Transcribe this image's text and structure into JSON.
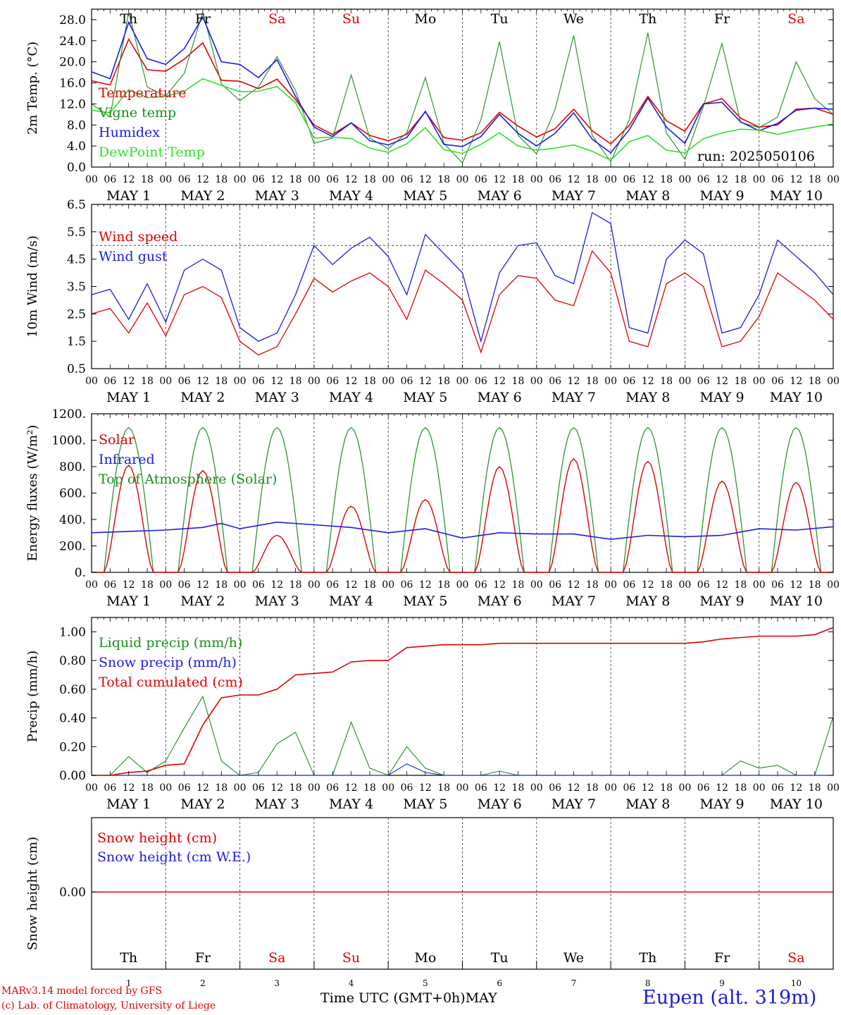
{
  "footer": {
    "credit_line1": "MARv3.14 model forced by GFS",
    "credit_line2": "(c) Lab. of Climatology, University of Liege",
    "x_axis_title": "Time UTC (GMT+0h)MAY",
    "station": "Eupen (alt. 319m)"
  },
  "colors": {
    "red": "#e00000",
    "green": "#1e8c1e",
    "blue": "#1c1ce0",
    "light_green": "#33dd33",
    "weekend_red": "#e00000",
    "grid": "#444444"
  },
  "chart_data": [
    {
      "type": "line",
      "ylabel": "2m Temp. (°C)",
      "ylim": [
        0,
        30
      ],
      "yticks": [
        0.0,
        4.0,
        8.0,
        12.0,
        16.0,
        20.0,
        24.0,
        28.0
      ],
      "ytick_labels": [
        "0.0",
        "4.0",
        "8.0",
        "12.0",
        "16.0",
        "20.0",
        "24.0",
        "28.0"
      ],
      "x_hour_ticks": [
        "00",
        "06",
        "12",
        "18"
      ],
      "date_labels": [
        "MAY  1",
        "MAY  2",
        "MAY  3",
        "MAY  4",
        "MAY  5",
        "MAY  6",
        "MAY  7",
        "MAY  8",
        "MAY  9",
        "MAY 10"
      ],
      "day_labels": [
        "Th",
        "Fr",
        "Sa",
        "Su",
        "Mo",
        "Tu",
        "We",
        "Th",
        "Fr",
        "Sa"
      ],
      "annotation": "run: 2025050106",
      "legend": [
        "Temperature",
        "Vigne temp",
        "Humidex",
        "DewPoint Temp"
      ],
      "x_hours": [
        0,
        6,
        12,
        18,
        24,
        30,
        36,
        42,
        48,
        54,
        60,
        66,
        72,
        78,
        84,
        90,
        96,
        102,
        108,
        114,
        120,
        126,
        132,
        138,
        144,
        150,
        156,
        162,
        168,
        174,
        180,
        186,
        192,
        198,
        204,
        210,
        216,
        222,
        228,
        234,
        240
      ],
      "series": [
        {
          "name": "Temperature",
          "color": "red",
          "values": [
            16.4,
            15.6,
            24.3,
            18.5,
            18.2,
            20.5,
            23.6,
            16.5,
            16.3,
            14.9,
            16.7,
            12.8,
            8.0,
            6.2,
            8.4,
            6.0,
            5.0,
            6.2,
            10.5,
            5.6,
            5.1,
            6.5,
            10.4,
            7.8,
            5.7,
            7.3,
            11.0,
            6.9,
            4.4,
            7.9,
            13.4,
            8.8,
            6.8,
            12.0,
            13.0,
            9.3,
            7.6,
            8.0,
            11.0,
            11.2,
            10.0
          ]
        },
        {
          "name": "Vigne temp",
          "color": "green",
          "values": [
            12.0,
            9.5,
            29.5,
            15.2,
            13.5,
            17.8,
            29.5,
            15.8,
            12.6,
            15.2,
            21.0,
            14.5,
            4.5,
            5.5,
            17.5,
            5.5,
            3.5,
            6.5,
            17.0,
            4.5,
            0.8,
            9.0,
            23.8,
            6.0,
            2.5,
            11.0,
            25.0,
            6.0,
            1.0,
            9.0,
            25.5,
            6.5,
            1.5,
            11.5,
            23.5,
            8.5,
            7.5,
            9.5,
            20.0,
            13.0,
            10.0
          ]
        },
        {
          "name": "Humidex",
          "color": "blue",
          "values": [
            18.1,
            16.8,
            27.5,
            20.6,
            19.5,
            22.5,
            28.5,
            20.0,
            19.5,
            17.0,
            20.4,
            13.4,
            7.6,
            5.8,
            8.4,
            5.0,
            4.2,
            5.6,
            10.6,
            4.3,
            3.9,
            5.8,
            10.0,
            6.4,
            4.0,
            6.4,
            10.3,
            5.3,
            2.7,
            7.1,
            13.1,
            7.6,
            4.5,
            12.0,
            12.3,
            8.6,
            6.9,
            8.3,
            10.8,
            11.2,
            11.0
          ]
        },
        {
          "name": "DewPoint Temp",
          "color": "light_green",
          "values": [
            10.8,
            10.3,
            14.7,
            13.2,
            13.4,
            14.4,
            16.8,
            15.5,
            14.3,
            14.4,
            15.3,
            12.2,
            5.5,
            5.7,
            5.4,
            3.6,
            2.8,
            4.4,
            7.5,
            3.3,
            2.6,
            4.3,
            6.5,
            4.0,
            3.2,
            3.6,
            4.2,
            3.0,
            1.3,
            4.8,
            6.0,
            3.2,
            2.7,
            5.4,
            6.5,
            7.2,
            7.0,
            6.2,
            7.0,
            7.6,
            8.2
          ]
        }
      ]
    },
    {
      "type": "line",
      "ylabel": "10m Wind (m/s)",
      "ylim": [
        0.5,
        6.5
      ],
      "yticks": [
        0.5,
        1.5,
        2.5,
        3.5,
        4.5,
        5.5,
        6.5
      ],
      "ytick_labels": [
        "0.5",
        "1.5",
        "2.5",
        "3.5",
        "4.5",
        "5.5",
        "6.5"
      ],
      "reference_line": 5.0,
      "x_hour_ticks": [
        "00",
        "06",
        "12",
        "18"
      ],
      "date_labels": [
        "MAY  1",
        "MAY  2",
        "MAY  3",
        "MAY  4",
        "MAY  5",
        "MAY  6",
        "MAY  7",
        "MAY  8",
        "MAY  9",
        "MAY 10"
      ],
      "legend": [
        "Wind speed",
        "Wind gust"
      ],
      "x_hours": [
        0,
        6,
        12,
        18,
        24,
        30,
        36,
        42,
        48,
        54,
        60,
        66,
        72,
        78,
        84,
        90,
        96,
        102,
        108,
        114,
        120,
        126,
        132,
        138,
        144,
        150,
        156,
        162,
        168,
        174,
        180,
        186,
        192,
        198,
        204,
        210,
        216,
        222,
        228,
        234,
        240
      ],
      "series": [
        {
          "name": "Wind speed",
          "color": "red",
          "values": [
            2.5,
            2.7,
            1.8,
            2.9,
            1.7,
            3.2,
            3.5,
            3.1,
            1.5,
            1.0,
            1.3,
            2.5,
            3.8,
            3.3,
            3.7,
            4.0,
            3.5,
            2.3,
            4.1,
            3.6,
            3.0,
            1.1,
            3.2,
            3.9,
            3.8,
            3.0,
            2.8,
            4.8,
            4.0,
            1.5,
            1.3,
            3.6,
            4.0,
            3.5,
            1.3,
            1.5,
            2.4,
            4.0,
            3.5,
            3.0,
            2.3
          ]
        },
        {
          "name": "Wind gust",
          "color": "blue",
          "values": [
            3.2,
            3.4,
            2.3,
            3.6,
            2.2,
            4.1,
            4.5,
            4.1,
            2.0,
            1.5,
            1.8,
            3.2,
            5.0,
            4.3,
            4.9,
            5.3,
            4.6,
            3.2,
            5.4,
            4.7,
            4.0,
            1.5,
            4.0,
            5.0,
            5.1,
            3.9,
            3.6,
            6.2,
            5.8,
            2.0,
            1.8,
            4.5,
            5.2,
            4.7,
            1.8,
            2.0,
            3.2,
            5.2,
            4.6,
            4.0,
            3.2
          ]
        }
      ]
    },
    {
      "type": "line",
      "ylabel": "Energy fluxes (W/m²)",
      "ylim": [
        0,
        1200
      ],
      "yticks": [
        0,
        200,
        400,
        600,
        800,
        1000,
        1200
      ],
      "ytick_labels": [
        "0.",
        "200.",
        "400.",
        "600.",
        "800.",
        "1000.",
        "1200."
      ],
      "x_hour_ticks": [
        "00",
        "06",
        "12",
        "18"
      ],
      "date_labels": [
        "MAY  1",
        "MAY  2",
        "MAY  3",
        "MAY  4",
        "MAY  5",
        "MAY  6",
        "MAY  7",
        "MAY  8",
        "MAY  9",
        "MAY 10"
      ],
      "legend": [
        "Solar",
        "Infrared",
        "Top of Atmosphere (Solar)"
      ],
      "toa_daily_peak": 1095,
      "solar_daily_peak": [
        810,
        770,
        280,
        500,
        550,
        800,
        860,
        840,
        690,
        680
      ],
      "infrared": {
        "x_hours": [
          0,
          12,
          24,
          36,
          42,
          48,
          60,
          72,
          84,
          96,
          108,
          120,
          132,
          144,
          156,
          168,
          180,
          192,
          204,
          216,
          228,
          240
        ],
        "values": [
          300,
          310,
          320,
          340,
          370,
          330,
          380,
          360,
          340,
          300,
          330,
          260,
          300,
          290,
          290,
          250,
          280,
          270,
          280,
          330,
          320,
          345
        ]
      },
      "series": [
        {
          "name": "Solar",
          "color": "red"
        },
        {
          "name": "Infrared",
          "color": "blue"
        },
        {
          "name": "Top of Atmosphere (Solar)",
          "color": "green"
        }
      ]
    },
    {
      "type": "line",
      "ylabel": "Precip (mm/h)",
      "ylim": [
        0,
        1.1
      ],
      "yticks": [
        0.0,
        0.2,
        0.4,
        0.6,
        0.8,
        1.0
      ],
      "ytick_labels": [
        "0.00",
        "0.20",
        "0.40",
        "0.60",
        "0.80",
        "1.00"
      ],
      "x_hour_ticks": [
        "00",
        "06",
        "12",
        "18"
      ],
      "date_labels": [
        "MAY  1",
        "MAY  2",
        "MAY  3",
        "MAY  4",
        "MAY  5",
        "MAY  6",
        "MAY  7",
        "MAY  8",
        "MAY  9",
        "MAY 10"
      ],
      "legend": [
        "Liquid precip (mm/h)",
        "Snow precip (mm/h)",
        "Total cumulated (cm)"
      ],
      "x_hours": [
        0,
        6,
        12,
        18,
        24,
        30,
        36,
        42,
        48,
        54,
        60,
        66,
        72,
        78,
        84,
        90,
        96,
        102,
        108,
        114,
        120,
        126,
        132,
        138,
        144,
        150,
        156,
        162,
        168,
        174,
        180,
        186,
        192,
        198,
        204,
        210,
        216,
        222,
        228,
        234,
        240
      ],
      "series": [
        {
          "name": "Liquid precip (mm/h)",
          "color": "green",
          "values": [
            0,
            0,
            0.13,
            0.02,
            0.1,
            0.33,
            0.55,
            0.1,
            0,
            0.02,
            0.22,
            0.3,
            0,
            0,
            0.37,
            0.05,
            0,
            0.2,
            0.05,
            0,
            0,
            0,
            0.03,
            0,
            0,
            0,
            0,
            0,
            0,
            0,
            0,
            0,
            0,
            0,
            0,
            0.1,
            0.05,
            0.07,
            0,
            0,
            0.41
          ]
        },
        {
          "name": "Snow precip (mm/h)",
          "color": "blue",
          "values": [
            0,
            0,
            0,
            0,
            0,
            0,
            0,
            0,
            0,
            0,
            0,
            0,
            0,
            0,
            0,
            0,
            0,
            0.08,
            0.02,
            0,
            0,
            0,
            0,
            0,
            0,
            0,
            0,
            0,
            0,
            0,
            0,
            0,
            0,
            0,
            0,
            0,
            0,
            0,
            0,
            0,
            0
          ]
        },
        {
          "name": "Total cumulated (cm)",
          "color": "red",
          "values": [
            0,
            0,
            0.02,
            0.03,
            0.07,
            0.08,
            0.35,
            0.54,
            0.56,
            0.56,
            0.6,
            0.7,
            0.71,
            0.72,
            0.79,
            0.8,
            0.8,
            0.89,
            0.9,
            0.91,
            0.91,
            0.91,
            0.92,
            0.92,
            0.92,
            0.92,
            0.92,
            0.92,
            0.92,
            0.92,
            0.92,
            0.92,
            0.92,
            0.93,
            0.95,
            0.96,
            0.97,
            0.97,
            0.97,
            0.98,
            1.03
          ]
        }
      ]
    },
    {
      "type": "line",
      "ylabel": "Snow height (cm)",
      "ytick_labels": [
        "0.00"
      ],
      "legend": [
        "Snow height (cm)",
        "Snow height (cm W.E.)"
      ],
      "day_labels": [
        "Th",
        "Fr",
        "Sa",
        "Su",
        "Mo",
        "Tu",
        "We",
        "Th",
        "Fr",
        "Sa"
      ],
      "day_numbers": [
        "1",
        "2",
        "3",
        "4",
        "5",
        "6",
        "7",
        "8",
        "9",
        "10"
      ],
      "series": [
        {
          "name": "Snow height (cm)",
          "color": "red",
          "values": [
            0.0,
            0.0
          ]
        },
        {
          "name": "Snow height (cm W.E.)",
          "color": "blue",
          "values": [
            0.0,
            0.0
          ]
        }
      ]
    }
  ]
}
